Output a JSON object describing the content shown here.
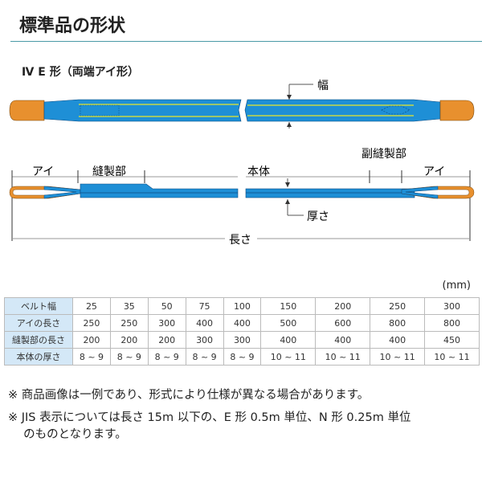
{
  "header": {
    "title": "標準品の形状"
  },
  "section": {
    "subtitle": "Ⅳ E 形（両端アイ形）"
  },
  "diagram": {
    "labels": {
      "width": "幅",
      "eye_left": "アイ",
      "sewn": "縫製部",
      "body": "本体",
      "sub_sewn": "副縫製部",
      "eye_right": "アイ",
      "thickness": "厚さ",
      "length": "長さ"
    },
    "colors": {
      "belt": "#1e8fd6",
      "eye": "#e8902e",
      "stripe": "#e8e82a"
    }
  },
  "table": {
    "unit": "(mm)",
    "rows": [
      {
        "label": "ベルト幅",
        "values": [
          "25",
          "35",
          "50",
          "75",
          "100",
          "150",
          "200",
          "250",
          "300"
        ]
      },
      {
        "label": "アイの長さ",
        "values": [
          "250",
          "250",
          "300",
          "400",
          "400",
          "500",
          "600",
          "800",
          "800"
        ]
      },
      {
        "label": "縫製部の長さ",
        "values": [
          "200",
          "200",
          "200",
          "300",
          "300",
          "400",
          "400",
          "400",
          "450"
        ]
      },
      {
        "label": "本体の厚さ",
        "values": [
          "8 ~ 9",
          "8 ~ 9",
          "8 ~ 9",
          "8 ~ 9",
          "8 ~ 9",
          "10 ~ 11",
          "10 ~ 11",
          "10 ~ 11",
          "10 ~ 11"
        ]
      }
    ]
  },
  "notes": [
    "※ 商品画像は一例であり、形式により仕様が異なる場合があります。",
    "※ JIS 表示については長さ 15m 以下の、E 形 0.5m 単位、N 形 0.25m 単位",
    "　 のものとなります。"
  ]
}
